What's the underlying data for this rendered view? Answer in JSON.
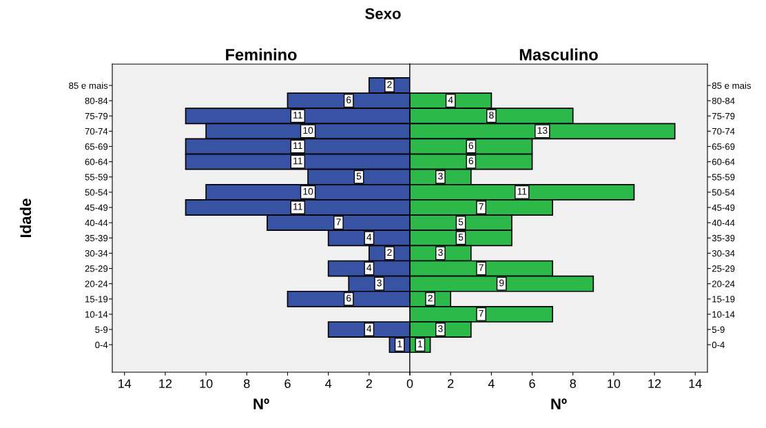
{
  "chart_data": [
    {
      "type": "bar",
      "orientation": "horizontal",
      "title": "Feminino",
      "ylabel": "Idade",
      "xlabel": "Nº",
      "annotations": [
        "Sexo"
      ],
      "categories": [
        "85 e mais",
        "80-84",
        "75-79",
        "70-74",
        "65-69",
        "60-64",
        "55-59",
        "50-54",
        "45-49",
        "40-44",
        "35-39",
        "30-34",
        "25-29",
        "20-24",
        "15-19",
        "10-14",
        "5-9",
        "0-4"
      ],
      "series": [
        {
          "color": "#3953a4",
          "values": [
            2,
            6,
            11,
            10,
            11,
            11,
            5,
            10,
            11,
            7,
            4,
            2,
            4,
            3,
            6,
            null,
            4,
            1
          ]
        }
      ],
      "xlim": [
        14.6,
        0
      ],
      "xticks": [
        14,
        12,
        10,
        8,
        6,
        4,
        2,
        {
          "value": 0,
          "label": null
        }
      ],
      "data_labels": true,
      "grid": false,
      "legend": false
    },
    {
      "type": "bar",
      "orientation": "horizontal",
      "title": "Masculino",
      "xlabel": "Nº",
      "categories": [
        "85 e mais",
        "80-84",
        "75-79",
        "70-74",
        "65-69",
        "60-64",
        "55-59",
        "50-54",
        "45-49",
        "40-44",
        "35-39",
        "30-34",
        "25-29",
        "20-24",
        "15-19",
        "10-14",
        "5-9",
        "0-4"
      ],
      "series": [
        {
          "color": "#2db84a",
          "values": [
            null,
            4,
            8,
            13,
            6,
            6,
            3,
            11,
            7,
            5,
            5,
            3,
            7,
            9,
            2,
            7,
            3,
            1
          ]
        }
      ],
      "xlim": [
        0,
        14.6
      ],
      "xticks": [
        0,
        2,
        4,
        6,
        8,
        10,
        12,
        14
      ],
      "data_labels": true,
      "grid": false,
      "legend": false
    }
  ]
}
